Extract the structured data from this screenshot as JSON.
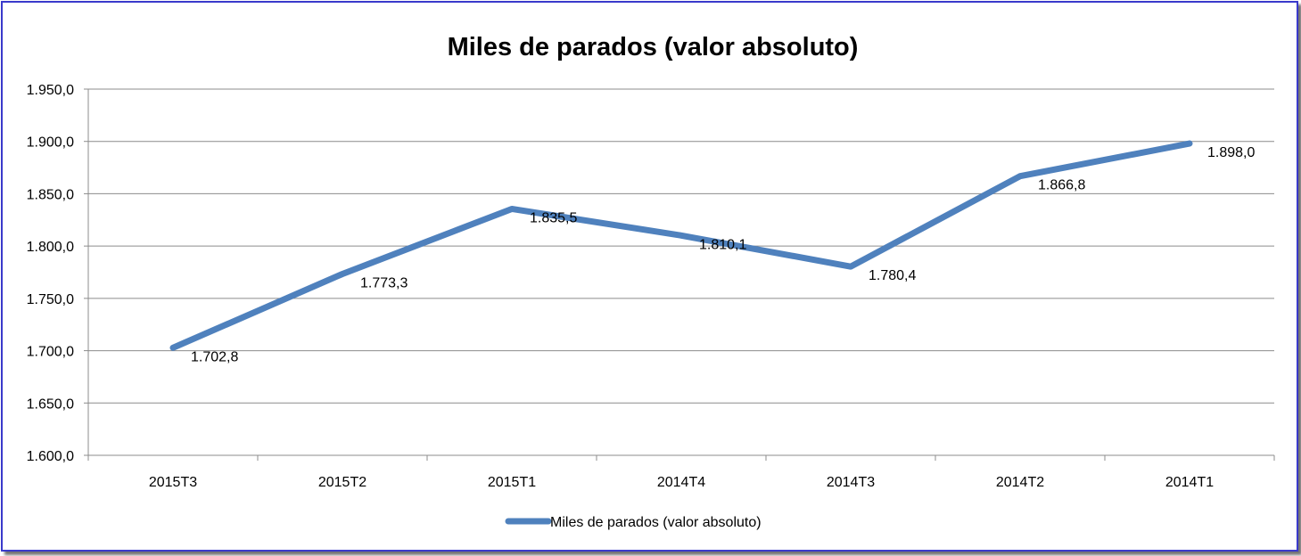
{
  "chart_data": {
    "type": "line",
    "title": "Miles de parados (valor absoluto)",
    "xlabel": "",
    "ylabel": "",
    "categories": [
      "2015T3",
      "2015T2",
      "2015T1",
      "2014T4",
      "2014T3",
      "2014T2",
      "2014T1"
    ],
    "series": [
      {
        "name": "Miles de parados (valor absoluto)",
        "values": [
          1702.8,
          1773.3,
          1835.5,
          1810.1,
          1780.4,
          1866.8,
          1898.0
        ],
        "data_labels": [
          "1.702,8",
          "1.773,3",
          "1.835,5",
          "1.810,1",
          "1.780,4",
          "1.866,8",
          "1.898,0"
        ],
        "color": "#4f81bd"
      }
    ],
    "ylim": [
      1600,
      1950
    ],
    "yticks": [
      1600,
      1650,
      1700,
      1750,
      1800,
      1850,
      1900,
      1950
    ],
    "ytick_labels": [
      "1.600,0",
      "1.650,0",
      "1.700,0",
      "1.750,0",
      "1.800,0",
      "1.850,0",
      "1.900,0",
      "1.950,0"
    ],
    "grid": true,
    "legend_position": "bottom",
    "frame_color": "#3a3acb"
  }
}
